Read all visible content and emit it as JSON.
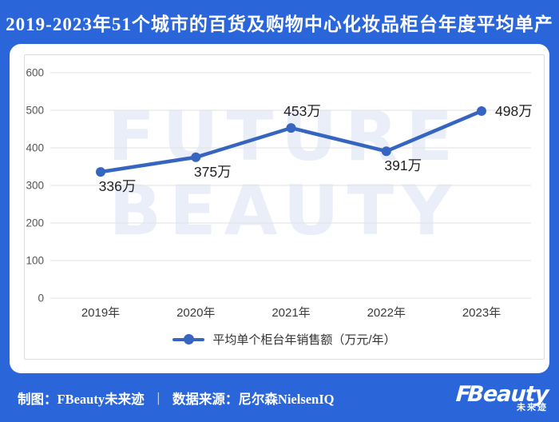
{
  "header": {
    "title": "2019-2023年51个城市的百货及购物中心化妆品柜台年度平均单产"
  },
  "watermark": {
    "line1": "FUTURE",
    "line2": "BEAUTY"
  },
  "chart_data": {
    "type": "line",
    "title": "2019-2023年51个城市的百货及购物中心化妆品柜台年度平均单产",
    "categories": [
      "2019年",
      "2020年",
      "2021年",
      "2022年",
      "2023年"
    ],
    "values": [
      336,
      375,
      453,
      391,
      498
    ],
    "data_labels": [
      "336万",
      "375万",
      "453万",
      "391万",
      "498万"
    ],
    "label_positions": [
      "below",
      "below",
      "above",
      "below",
      "right"
    ],
    "legend": "平均单个柜台年销售额（万元/年）",
    "legend_position": "bottom",
    "ylim": [
      0,
      600
    ],
    "yticks": [
      0,
      100,
      200,
      300,
      400,
      500,
      600
    ],
    "grid": true,
    "line_color": "#3565c0",
    "grid_color": "#e2e2e2",
    "tick_color": "#555555",
    "xlabel_color": "#3a3a3a",
    "datalabel_color": "#1f1f1f"
  },
  "footer": {
    "credit": "制图：FBeauty未来迹",
    "separator": "|",
    "source": "数据来源：尼尔森NielsenIQ",
    "logo": {
      "prefix": "F",
      "text": "Beauty",
      "sub": "未来迹"
    }
  },
  "colors": {
    "page_background": "#2a66d9",
    "card_background": "#ffffff",
    "title_text": "#ffffff",
    "line": "#3565c0",
    "watermark": "#e9eef8"
  }
}
